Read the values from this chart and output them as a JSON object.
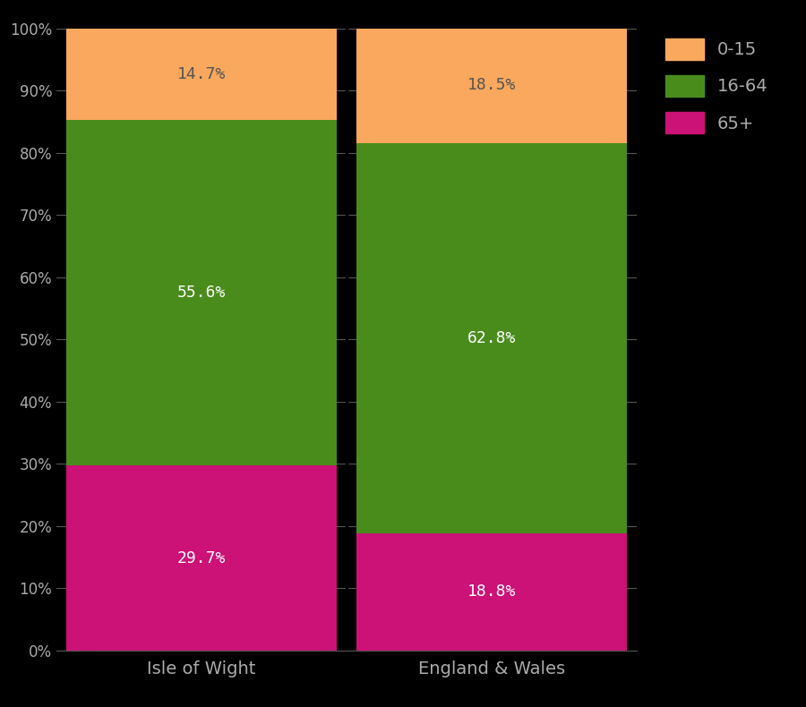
{
  "categories": [
    "Isle of Wight",
    "England & Wales"
  ],
  "segments": {
    "65+": [
      29.7,
      18.8
    ],
    "16-64": [
      55.6,
      62.8
    ],
    "0-15": [
      14.7,
      18.5
    ]
  },
  "colors": {
    "65+": "#cc1177",
    "16-64": "#4a8c1c",
    "0-15": "#f9a85d"
  },
  "label_colors": {
    "65+": "white",
    "16-64": "white",
    "0-15": "#555555"
  },
  "background_color": "#000000",
  "text_color": "#aaaaaa",
  "ytick_labels": [
    "0%",
    "10%",
    "20%",
    "30%",
    "40%",
    "50%",
    "60%",
    "70%",
    "80%",
    "90%",
    "100%"
  ],
  "legend_labels": [
    "0-15",
    "16-64",
    "65+"
  ],
  "bar_width": 0.93,
  "figsize": [
    9.0,
    7.9
  ],
  "dpi": 100
}
